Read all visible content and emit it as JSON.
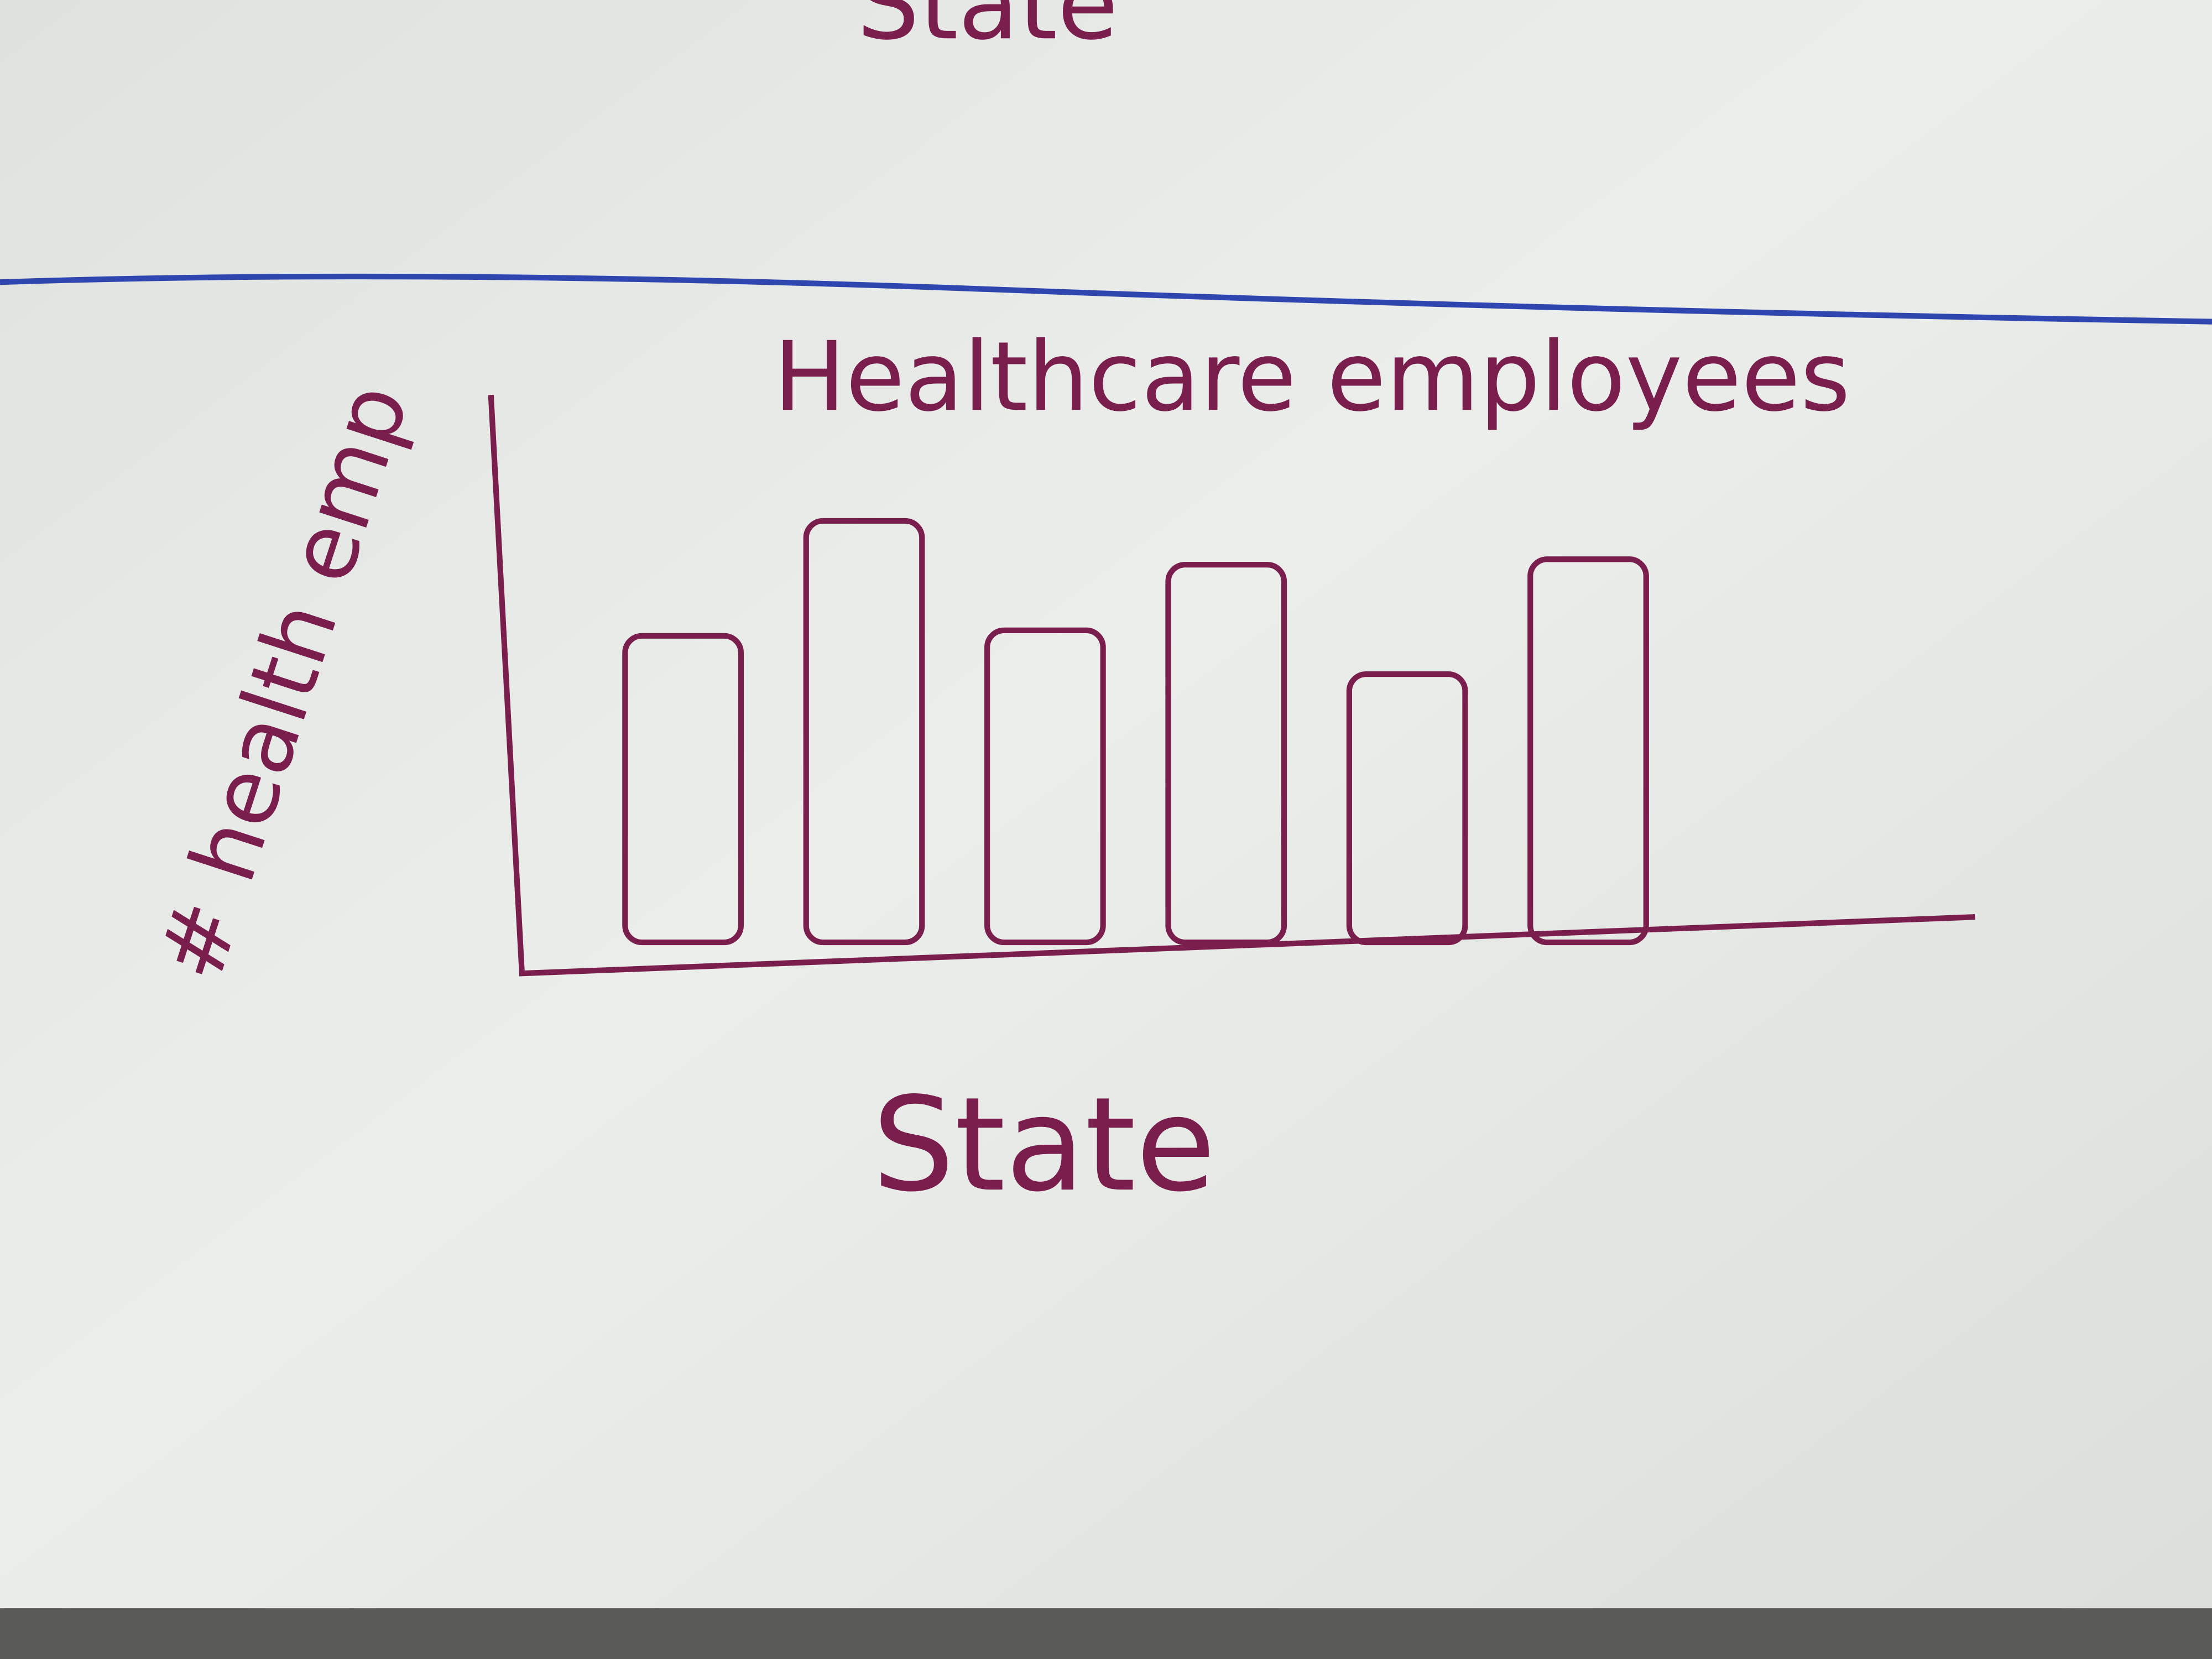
{
  "cropped_text": "State",
  "chart_data": {
    "type": "bar",
    "title": "Healthcare employees",
    "x_label": "State",
    "y_label": "# health emp",
    "categories": [
      null,
      null,
      null,
      null,
      null,
      null
    ],
    "values": [
      56,
      77,
      57,
      69,
      49,
      70
    ],
    "color": "#7a1e4e",
    "ylim": [
      0,
      100
    ],
    "grid": false
  }
}
